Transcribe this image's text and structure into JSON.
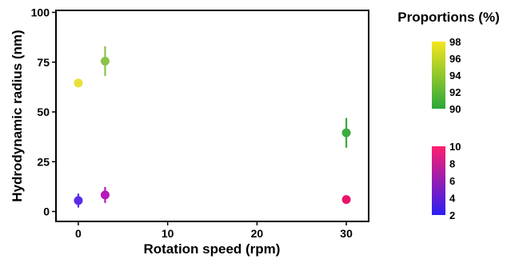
{
  "chart_data": {
    "type": "scatter",
    "title": "",
    "xlabel": "Rotation speed (rpm)",
    "ylabel": "Hydrodynamic radius (nm)",
    "xlim": [
      -2.5,
      32.5
    ],
    "ylim": [
      -5,
      101
    ],
    "x_ticks": [
      0,
      10,
      20,
      30
    ],
    "y_ticks": [
      0,
      25,
      50,
      75,
      100
    ],
    "grid": false,
    "legend_title": "Proportions (%)",
    "series": [
      {
        "points": [
          {
            "x": 0,
            "y": 64.5,
            "err": 0,
            "proportion": 98,
            "color": "#e8e13a"
          },
          {
            "x": 3,
            "y": 75.5,
            "err": 7.5,
            "proportion": 94,
            "color": "#8bc34a"
          },
          {
            "x": 30,
            "y": 39.5,
            "err": 7.5,
            "proportion": 91,
            "color": "#3aab3d"
          }
        ]
      },
      {
        "points": [
          {
            "x": 0,
            "y": 5.5,
            "err": 3.5,
            "proportion": 2,
            "color": "#5a2be8"
          },
          {
            "x": 3,
            "y": 8.3,
            "err": 4.0,
            "proportion": 6,
            "color": "#b41ab8"
          },
          {
            "x": 30,
            "y": 6.0,
            "err": 0,
            "proportion": 10,
            "color": "#e8146a"
          }
        ]
      }
    ],
    "colorbars": [
      {
        "min": 90,
        "max": 98,
        "ticks": [
          98,
          96,
          94,
          92,
          90
        ],
        "color_low": "#2aa83a",
        "color_high": "#f5e61e"
      },
      {
        "min": 2,
        "max": 10,
        "ticks": [
          10,
          8,
          6,
          4,
          2
        ],
        "color_low": "#2c1ef5",
        "color_high": "#ff1f6e"
      }
    ]
  }
}
